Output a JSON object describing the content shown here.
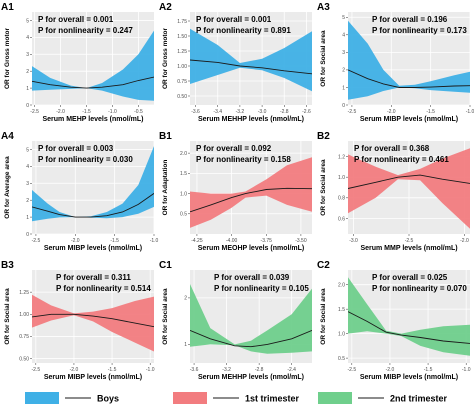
{
  "colors": {
    "boys": "#3fb0e6",
    "first_trimester": "#f27c7f",
    "second_trimester": "#6fcf8c",
    "line": "#1a1a1a",
    "panel_bg": "#ebebeb"
  },
  "legend": {
    "items": [
      {
        "label": "Boys",
        "color_key": "boys"
      },
      {
        "label": "1st trimester",
        "color_key": "first_trimester"
      },
      {
        "label": "2nd trimester",
        "color_key": "second_trimester"
      }
    ]
  },
  "chart_data": [
    {
      "id": "A1",
      "type": "line",
      "band": "boys",
      "annotation_side": "left",
      "p_overall_label": "P for overall = 0.001",
      "p_nonlinearity_label": "P for nonlinearity = 0.247",
      "xlabel": "Serum MEHP levels (nmol/mL)",
      "ylabel": "OR for Gross motor",
      "xlim": [
        -2.55,
        -0.2
      ],
      "xticks": [
        -2.5,
        -2.0,
        -1.5,
        -1.0,
        -0.5
      ],
      "xtick_labels": [
        "-2.5",
        "-2.0",
        "-1.5",
        "-1.0",
        "-0.5"
      ],
      "ylim": [
        0,
        5.5
      ],
      "yticks": [
        0,
        1,
        2,
        3,
        4,
        5
      ],
      "ytick_labels": [
        "0",
        "1",
        "2",
        "3",
        "4",
        "5"
      ],
      "x": [
        -2.55,
        -2.2,
        -1.8,
        -1.5,
        -1.2,
        -0.8,
        -0.5,
        -0.2
      ],
      "lower": [
        0.85,
        0.9,
        0.95,
        1.0,
        0.85,
        0.5,
        0.3,
        0.25
      ],
      "fit": [
        1.4,
        1.2,
        1.05,
        1.0,
        1.05,
        1.2,
        1.45,
        1.65
      ],
      "upper": [
        2.3,
        1.6,
        1.15,
        1.0,
        1.3,
        2.1,
        3.0,
        4.4
      ]
    },
    {
      "id": "A2",
      "type": "line",
      "band": "boys",
      "annotation_side": "left",
      "p_overall_label": "P for overall = 0.001",
      "p_nonlinearity_label": "P for nonlinearity = 0.891",
      "xlabel": "Serum MEHHP levels (nmol/mL)",
      "ylabel": "OR for Gross motor",
      "xlim": [
        -3.65,
        -2.55
      ],
      "xticks": [
        -3.6,
        -3.4,
        -3.2,
        -3.0,
        -2.8,
        -2.6
      ],
      "xtick_labels": [
        "-3.6",
        "-3.4",
        "-3.2",
        "-3.0",
        "-2.8",
        "-2.6"
      ],
      "ylim": [
        0.35,
        1.9
      ],
      "yticks": [
        0.5,
        0.75,
        1.0,
        1.25,
        1.5,
        1.75
      ],
      "ytick_labels": [
        "0.50",
        "0.75",
        "1.00",
        "1.25",
        "1.50",
        "1.75"
      ],
      "x": [
        -3.65,
        -3.4,
        -3.2,
        -3.0,
        -2.8,
        -2.55
      ],
      "lower": [
        0.7,
        0.85,
        0.97,
        0.93,
        0.8,
        0.58
      ],
      "fit": [
        1.1,
        1.06,
        1.0,
        0.97,
        0.92,
        0.87
      ],
      "upper": [
        1.62,
        1.35,
        1.05,
        1.12,
        1.3,
        1.58
      ]
    },
    {
      "id": "A3",
      "type": "line",
      "band": "boys",
      "annotation_side": "right",
      "p_overall_label": "P for overall = 0.196",
      "p_nonlinearity_label": "P for nonlinearity = 0.173",
      "xlabel": "Serum MIBP levels (nmol/mL)",
      "ylabel": "OR for Social area",
      "xlim": [
        -2.55,
        -1.0
      ],
      "xticks": [
        -2.5,
        -2.0,
        -1.5,
        -1.0
      ],
      "xtick_labels": [
        "-2.5",
        "-2.0",
        "-1.5",
        "-1.0"
      ],
      "ylim": [
        0,
        5.3
      ],
      "yticks": [
        0,
        1,
        2,
        3,
        4,
        5
      ],
      "ytick_labels": [
        "0",
        "1",
        "2",
        "3",
        "4",
        "5"
      ],
      "x": [
        -2.55,
        -2.3,
        -2.1,
        -1.9,
        -1.7,
        -1.5,
        -1.2,
        -1.0
      ],
      "lower": [
        0.3,
        0.5,
        0.8,
        1.0,
        0.95,
        0.85,
        0.75,
        0.7
      ],
      "fit": [
        2.0,
        1.5,
        1.2,
        1.0,
        1.0,
        1.02,
        1.08,
        1.1
      ],
      "upper": [
        4.8,
        3.5,
        2.0,
        1.1,
        1.15,
        1.35,
        1.7,
        1.9
      ]
    },
    {
      "id": "A4",
      "type": "line",
      "band": "boys",
      "annotation_side": "left",
      "p_overall_label": "P for overall = 0.003",
      "p_nonlinearity_label": "P for nonlinearity = 0.030",
      "xlabel": "Serum MIBP levels (nmol/mL)",
      "ylabel": "OR for Average area",
      "xlim": [
        -2.55,
        -1.0
      ],
      "xticks": [
        -2.5,
        -2.0,
        -1.5,
        -1.0
      ],
      "xtick_labels": [
        "-2.5",
        "-2.0",
        "-1.5",
        "-1.0"
      ],
      "ylim": [
        0,
        5.5
      ],
      "yticks": [
        0,
        1,
        2,
        3,
        4,
        5
      ],
      "ytick_labels": [
        "0",
        "1",
        "2",
        "3",
        "4",
        "5"
      ],
      "x": [
        -2.55,
        -2.35,
        -2.2,
        -2.0,
        -1.8,
        -1.6,
        -1.4,
        -1.2,
        -1.0
      ],
      "lower": [
        0.75,
        0.9,
        0.98,
        1.0,
        0.97,
        0.93,
        1.0,
        1.2,
        1.6
      ],
      "fit": [
        1.6,
        1.35,
        1.15,
        1.0,
        1.0,
        1.08,
        1.3,
        1.75,
        2.4
      ],
      "upper": [
        2.6,
        1.8,
        1.3,
        1.0,
        1.05,
        1.3,
        1.8,
        2.9,
        5.2
      ]
    },
    {
      "id": "B1",
      "type": "line",
      "band": "first_trimester",
      "annotation_side": "left",
      "p_overall_label": "P for overall = 0.092",
      "p_nonlinearity_label": "P for nonlinearity = 0.158",
      "xlabel": "Serum MEOHP levels (nmol/mL)",
      "ylabel": "OR for Adaptation",
      "xlim": [
        -4.3,
        -3.42
      ],
      "xticks": [
        -4.25,
        -4.0,
        -3.75,
        -3.5
      ],
      "xtick_labels": [
        "-4.25",
        "-4.00",
        "-3.75",
        "-3.50"
      ],
      "ylim": [
        0,
        2.3
      ],
      "yticks": [
        0.5,
        1.0,
        1.5,
        2.0
      ],
      "ytick_labels": [
        "0.5",
        "1.0",
        "1.5",
        "2.0"
      ],
      "x": [
        -4.3,
        -4.15,
        -4.0,
        -3.9,
        -3.75,
        -3.6,
        -3.42
      ],
      "lower": [
        0.15,
        0.35,
        0.65,
        0.9,
        0.95,
        0.72,
        0.55
      ],
      "fit": [
        0.55,
        0.72,
        0.9,
        1.0,
        1.1,
        1.13,
        1.12
      ],
      "upper": [
        1.05,
        1.0,
        1.0,
        1.05,
        1.35,
        1.7,
        1.9
      ]
    },
    {
      "id": "B2",
      "type": "line",
      "band": "first_trimester",
      "annotation_side": "left",
      "p_overall_label": "P for overall = 0.368",
      "p_nonlinearity_label": "P for nonlinearity = 0.461",
      "xlabel": "Serum MMP levels (nmol/mL)",
      "ylabel": "OR for Social area",
      "xlim": [
        -3.05,
        -1.95
      ],
      "xticks": [
        -3.0,
        -2.5,
        -2.0
      ],
      "xtick_labels": [
        "-3.0",
        "-2.5",
        "-2.0"
      ],
      "ylim": [
        0.45,
        1.35
      ],
      "yticks": [
        0.6,
        0.8,
        1.0,
        1.2
      ],
      "ytick_labels": [
        "0.6",
        "0.8",
        "1.0",
        "1.2"
      ],
      "x": [
        -3.05,
        -2.8,
        -2.6,
        -2.4,
        -2.2,
        -1.95
      ],
      "lower": [
        0.65,
        0.8,
        0.98,
        0.97,
        0.75,
        0.5
      ],
      "fit": [
        0.89,
        0.95,
        1.0,
        1.02,
        0.98,
        0.94
      ],
      "upper": [
        1.22,
        1.1,
        1.02,
        1.08,
        1.18,
        1.28
      ]
    },
    {
      "id": "B3",
      "type": "line",
      "band": "first_trimester",
      "annotation_side": "right",
      "p_overall_label": "P for overall = 0.311",
      "p_nonlinearity_label": "P for nonlinearity = 0.514",
      "xlabel": "Serum MIBP levels (nmol/mL)",
      "ylabel": "OR for Social area",
      "xlim": [
        -2.55,
        -0.95
      ],
      "xticks": [
        -2.5,
        -2.0,
        -1.5,
        -1.0
      ],
      "xtick_labels": [
        "-2.5",
        "-2.0",
        "-1.5",
        "-1.0"
      ],
      "ylim": [
        0.45,
        1.5
      ],
      "yticks": [
        0.5,
        0.75,
        1.0,
        1.25
      ],
      "ytick_labels": [
        "0.50",
        "0.75",
        "1.00",
        "1.25"
      ],
      "x": [
        -2.55,
        -2.3,
        -2.0,
        -1.75,
        -1.5,
        -1.2,
        -0.95
      ],
      "lower": [
        0.85,
        0.93,
        0.99,
        0.92,
        0.8,
        0.68,
        0.58
      ],
      "fit": [
        0.97,
        1.0,
        1.0,
        0.98,
        0.95,
        0.9,
        0.86
      ],
      "upper": [
        1.22,
        1.1,
        1.01,
        1.03,
        1.07,
        1.15,
        1.2
      ]
    },
    {
      "id": "C1",
      "type": "line",
      "band": "second_trimester",
      "annotation_side": "right",
      "p_overall_label": "P for overall = 0.039",
      "p_nonlinearity_label": "P for nonlinearity = 0.105",
      "xlabel": "Serum MEHHP levels (nmol/mL)",
      "ylabel": "OR for Social area",
      "xlim": [
        -3.65,
        -2.15
      ],
      "xticks": [
        -3.6,
        -3.2,
        -2.8,
        -2.4
      ],
      "xtick_labels": [
        "-3.6",
        "-3.2",
        "-2.8",
        "-2.4"
      ],
      "ylim": [
        0.6,
        2.6
      ],
      "yticks": [
        1,
        2
      ],
      "ytick_labels": [
        "1",
        "2"
      ],
      "x": [
        -3.65,
        -3.4,
        -3.1,
        -2.9,
        -2.7,
        -2.4,
        -2.15
      ],
      "lower": [
        0.95,
        1.0,
        0.98,
        0.85,
        0.8,
        0.82,
        0.85
      ],
      "fit": [
        1.3,
        1.12,
        0.97,
        0.95,
        1.0,
        1.12,
        1.3
      ],
      "upper": [
        2.3,
        1.35,
        1.0,
        1.08,
        1.3,
        1.65,
        2.2
      ]
    },
    {
      "id": "C2",
      "type": "line",
      "band": "second_trimester",
      "annotation_side": "right",
      "p_overall_label": "P for overall = 0.025",
      "p_nonlinearity_label": "P for nonlinearity = 0.070",
      "xlabel": "Serum MIBP levels (nmol/mL)",
      "ylabel": "OR for Social area",
      "xlim": [
        -2.55,
        -0.95
      ],
      "xticks": [
        -2.5,
        -2.0,
        -1.5,
        -1.0
      ],
      "xtick_labels": [
        "-2.5",
        "-2.0",
        "-1.5",
        "-1.0"
      ],
      "ylim": [
        0.4,
        2.3
      ],
      "yticks": [
        0.5,
        1.0,
        1.5,
        2.0
      ],
      "ytick_labels": [
        "0.5",
        "1.0",
        "1.5",
        "2.0"
      ],
      "x": [
        -2.55,
        -2.3,
        -2.05,
        -1.85,
        -1.6,
        -1.3,
        -0.95
      ],
      "lower": [
        1.0,
        1.05,
        1.0,
        0.95,
        0.75,
        0.62,
        0.55
      ],
      "fit": [
        1.45,
        1.25,
        1.03,
        0.97,
        0.92,
        0.85,
        0.8
      ],
      "upper": [
        2.15,
        1.6,
        1.06,
        1.0,
        1.08,
        1.15,
        1.18
      ]
    }
  ]
}
